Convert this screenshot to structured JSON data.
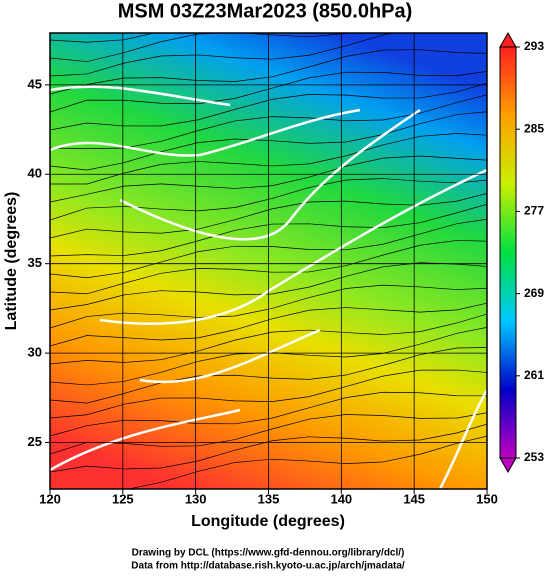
{
  "chart_data": {
    "type": "map",
    "title": "MSM 03Z23Mar2023 (850.0hPa)",
    "xlabel": "Longitude (degrees)",
    "ylabel": "Latitude  (degrees)",
    "xlim": [
      120,
      150
    ],
    "xticks": [
      120,
      125,
      130,
      135,
      140,
      145,
      150
    ],
    "ylim": [
      22.4,
      47.9
    ],
    "yticks": [
      25,
      30,
      35,
      40,
      45
    ],
    "grid": true,
    "colorbar": {
      "lim": [
        253,
        293
      ],
      "ticks": [
        253,
        261,
        269,
        277,
        285,
        293
      ],
      "colors": [
        "#c000c0",
        "#0000c8",
        "#00c8ff",
        "#00e040",
        "#c8f000",
        "#ffa000",
        "#ff2020"
      ]
    },
    "footer": [
      "Drawing by DCL (https://www.gfd-dennou.org/library/dcl/)",
      "Data from http://database.rish.kyoto-u.ac.jp/arch/jmadata/"
    ]
  }
}
